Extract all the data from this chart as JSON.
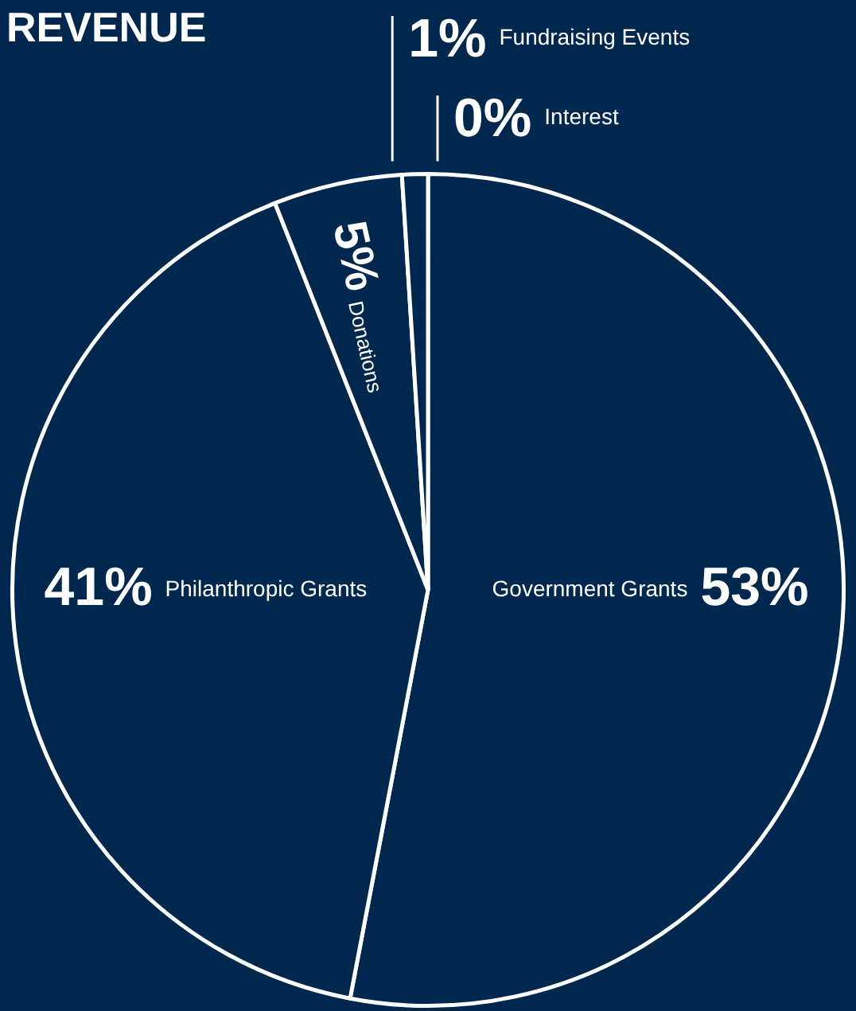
{
  "chart_data": {
    "type": "pie",
    "title": "REVENUE",
    "categories": [
      "Government Grants",
      "Philanthropic Grants",
      "Donations",
      "Fundraising Events",
      "Interest"
    ],
    "values": [
      53,
      41,
      5,
      1,
      0
    ],
    "value_labels": [
      "53%",
      "41%",
      "5%",
      "1%",
      "0%"
    ],
    "colors": [
      "#00284f",
      "#00284f",
      "#00284f",
      "#00284f",
      "#00284f"
    ],
    "legend": false
  }
}
